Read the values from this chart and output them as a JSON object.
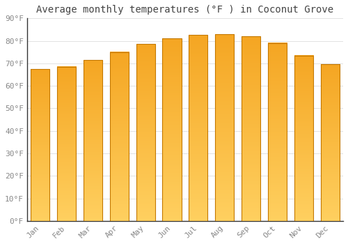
{
  "title": "Average monthly temperatures (°F ) in Coconut Grove",
  "months": [
    "Jan",
    "Feb",
    "Mar",
    "Apr",
    "May",
    "Jun",
    "Jul",
    "Aug",
    "Sep",
    "Oct",
    "Nov",
    "Dec"
  ],
  "values": [
    67.5,
    68.5,
    71.5,
    75.0,
    78.5,
    81.0,
    82.5,
    83.0,
    82.0,
    79.0,
    73.5,
    69.5
  ],
  "bar_color_top": "#F5A623",
  "bar_color_bottom": "#FFD060",
  "bar_edge_color": "#C47800",
  "background_color": "#FFFFFF",
  "grid_color": "#DDDDDD",
  "ylim": [
    0,
    90
  ],
  "yticks": [
    0,
    10,
    20,
    30,
    40,
    50,
    60,
    70,
    80,
    90
  ],
  "ylabel_format": "°F",
  "title_fontsize": 10,
  "tick_fontsize": 8,
  "tick_color": "#888888",
  "spine_color": "#333333"
}
